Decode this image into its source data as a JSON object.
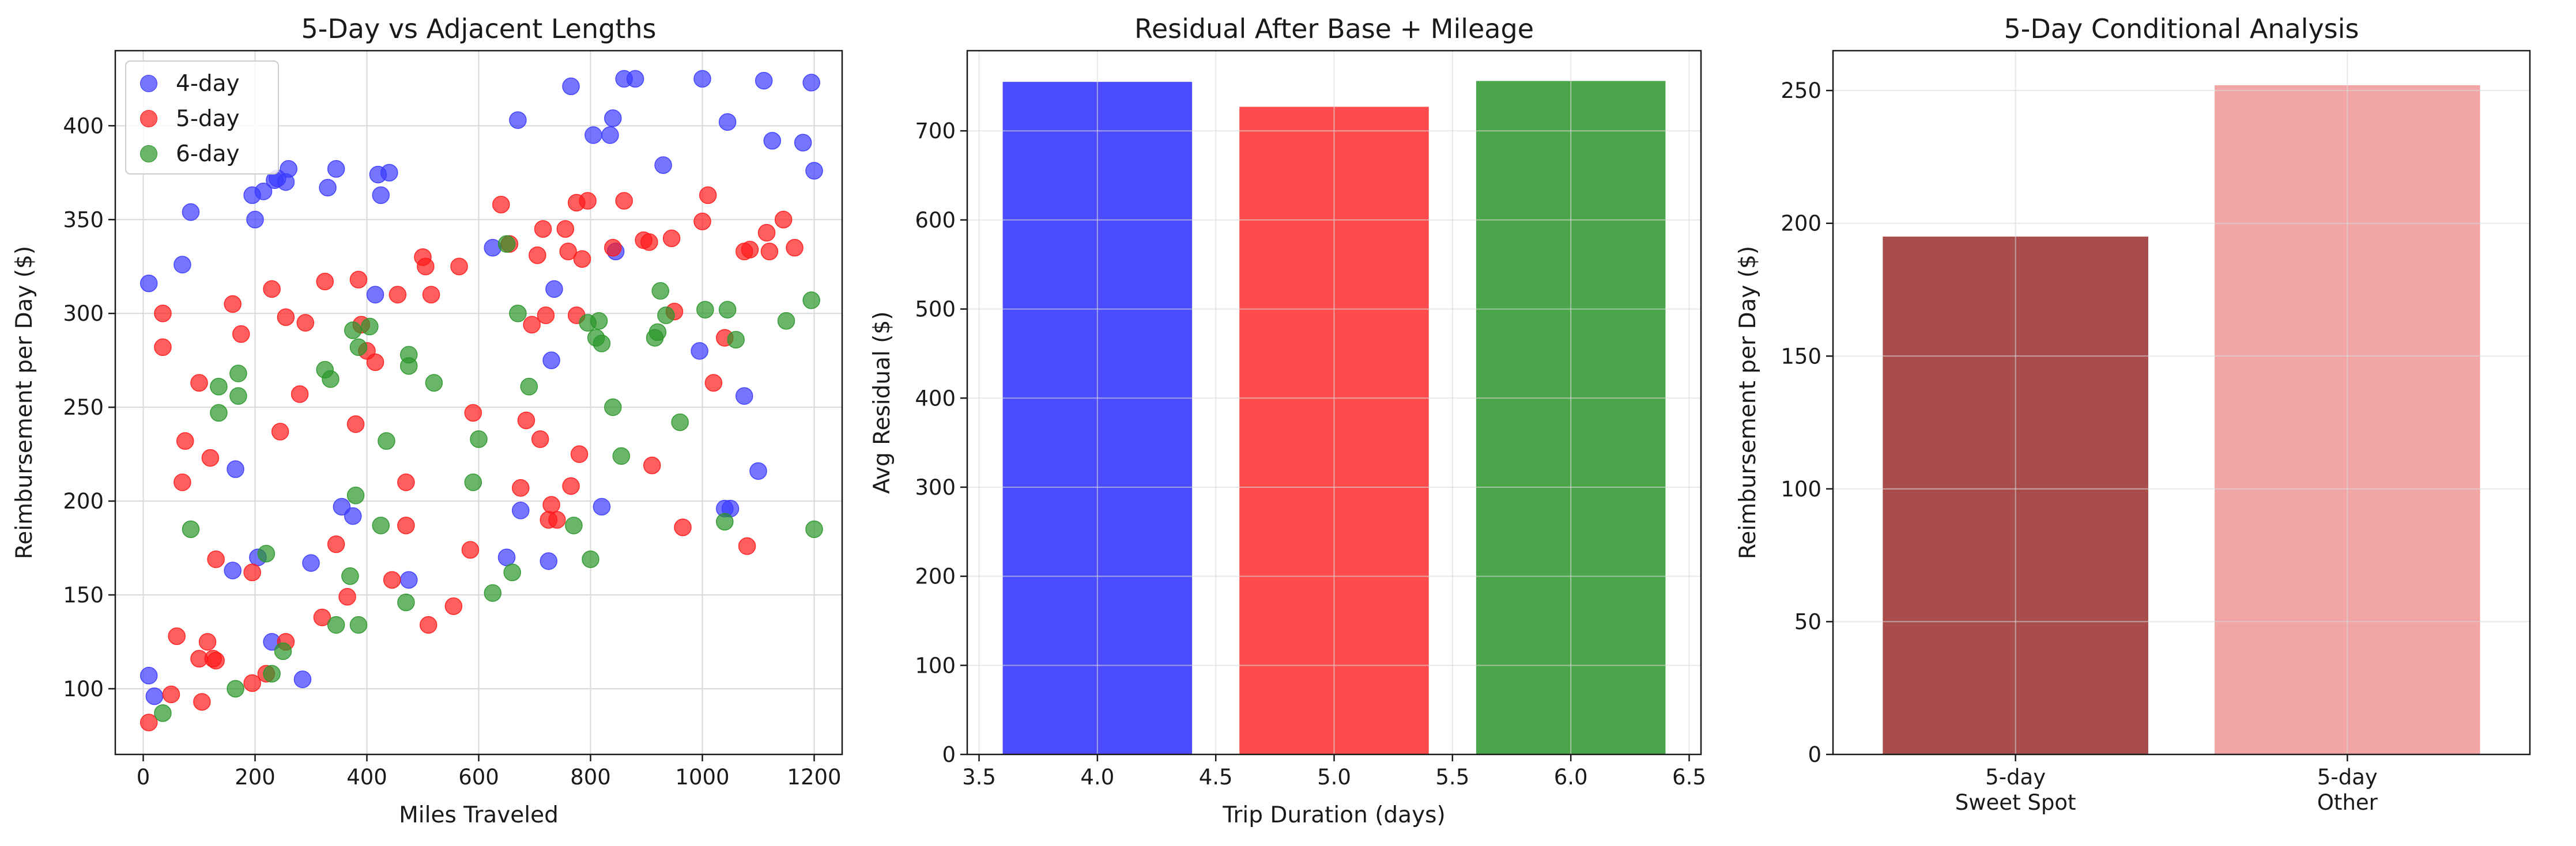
{
  "chart_data": [
    {
      "type": "scatter",
      "title": "5-Day vs Adjacent Lengths",
      "xlabel": "Miles Traveled",
      "ylabel": "Reimbursement per Day ($)",
      "xlim": [
        -50,
        1250
      ],
      "ylim": [
        65,
        440
      ],
      "xticks": [
        0,
        200,
        400,
        600,
        800,
        1000,
        1200
      ],
      "yticks": [
        100,
        150,
        200,
        250,
        300,
        350,
        400
      ],
      "grid": true,
      "legend_position": "top-left",
      "series": [
        {
          "name": "4-day",
          "color": "#3a3aff",
          "points": [
            [
              10,
              316
            ],
            [
              10,
              107
            ],
            [
              20,
              96
            ],
            [
              70,
              326
            ],
            [
              85,
              354
            ],
            [
              160,
              163
            ],
            [
              165,
              217
            ],
            [
              195,
              363
            ],
            [
              200,
              350
            ],
            [
              205,
              170
            ],
            [
              215,
              365
            ],
            [
              230,
              125
            ],
            [
              235,
              371
            ],
            [
              240,
              372
            ],
            [
              255,
              370
            ],
            [
              260,
              377
            ],
            [
              285,
              105
            ],
            [
              300,
              167
            ],
            [
              330,
              367
            ],
            [
              345,
              377
            ],
            [
              355,
              197
            ],
            [
              375,
              192
            ],
            [
              415,
              310
            ],
            [
              420,
              374
            ],
            [
              425,
              363
            ],
            [
              440,
              375
            ],
            [
              475,
              158
            ],
            [
              625,
              335
            ],
            [
              650,
              170
            ],
            [
              670,
              403
            ],
            [
              675,
              195
            ],
            [
              725,
              168
            ],
            [
              730,
              275
            ],
            [
              735,
              313
            ],
            [
              765,
              421
            ],
            [
              805,
              395
            ],
            [
              820,
              197
            ],
            [
              835,
              395
            ],
            [
              840,
              404
            ],
            [
              845,
              333
            ],
            [
              860,
              425
            ],
            [
              880,
              425
            ],
            [
              930,
              379
            ],
            [
              995,
              280
            ],
            [
              1000,
              425
            ],
            [
              1040,
              196
            ],
            [
              1045,
              402
            ],
            [
              1050,
              196
            ],
            [
              1075,
              256
            ],
            [
              1100,
              216
            ],
            [
              1110,
              424
            ],
            [
              1125,
              392
            ],
            [
              1180,
              391
            ],
            [
              1195,
              423
            ],
            [
              1200,
              376
            ]
          ]
        },
        {
          "name": "5-day",
          "color": "#ff1a1a",
          "points": [
            [
              10,
              82
            ],
            [
              35,
              300
            ],
            [
              35,
              282
            ],
            [
              50,
              97
            ],
            [
              60,
              128
            ],
            [
              70,
              210
            ],
            [
              75,
              232
            ],
            [
              100,
              263
            ],
            [
              100,
              116
            ],
            [
              105,
              93
            ],
            [
              115,
              125
            ],
            [
              120,
              223
            ],
            [
              125,
              116
            ],
            [
              130,
              169
            ],
            [
              130,
              115
            ],
            [
              160,
              305
            ],
            [
              175,
              289
            ],
            [
              195,
              103
            ],
            [
              195,
              162
            ],
            [
              220,
              108
            ],
            [
              230,
              313
            ],
            [
              245,
              237
            ],
            [
              255,
              298
            ],
            [
              255,
              125
            ],
            [
              280,
              257
            ],
            [
              290,
              295
            ],
            [
              320,
              138
            ],
            [
              325,
              317
            ],
            [
              345,
              177
            ],
            [
              365,
              149
            ],
            [
              380,
              241
            ],
            [
              385,
              318
            ],
            [
              390,
              294
            ],
            [
              400,
              280
            ],
            [
              415,
              274
            ],
            [
              445,
              158
            ],
            [
              455,
              310
            ],
            [
              470,
              210
            ],
            [
              470,
              187
            ],
            [
              500,
              330
            ],
            [
              505,
              325
            ],
            [
              510,
              134
            ],
            [
              515,
              310
            ],
            [
              555,
              144
            ],
            [
              565,
              325
            ],
            [
              585,
              174
            ],
            [
              590,
              247
            ],
            [
              640,
              358
            ],
            [
              655,
              337
            ],
            [
              675,
              207
            ],
            [
              685,
              243
            ],
            [
              695,
              294
            ],
            [
              705,
              331
            ],
            [
              710,
              233
            ],
            [
              715,
              345
            ],
            [
              720,
              299
            ],
            [
              725,
              190
            ],
            [
              730,
              198
            ],
            [
              740,
              190
            ],
            [
              755,
              345
            ],
            [
              760,
              333
            ],
            [
              765,
              208
            ],
            [
              775,
              299
            ],
            [
              775,
              359
            ],
            [
              780,
              225
            ],
            [
              785,
              329
            ],
            [
              795,
              360
            ],
            [
              840,
              335
            ],
            [
              860,
              360
            ],
            [
              895,
              339
            ],
            [
              905,
              338
            ],
            [
              910,
              219
            ],
            [
              945,
              340
            ],
            [
              950,
              301
            ],
            [
              965,
              186
            ],
            [
              1000,
              349
            ],
            [
              1010,
              363
            ],
            [
              1020,
              263
            ],
            [
              1040,
              287
            ],
            [
              1075,
              333
            ],
            [
              1080,
              176
            ],
            [
              1085,
              334
            ],
            [
              1115,
              343
            ],
            [
              1120,
              333
            ],
            [
              1145,
              350
            ],
            [
              1165,
              335
            ]
          ]
        },
        {
          "name": "6-day",
          "color": "#2a962a",
          "points": [
            [
              35,
              87
            ],
            [
              85,
              185
            ],
            [
              135,
              261
            ],
            [
              135,
              247
            ],
            [
              165,
              100
            ],
            [
              170,
              268
            ],
            [
              170,
              256
            ],
            [
              220,
              172
            ],
            [
              230,
              108
            ],
            [
              250,
              120
            ],
            [
              325,
              270
            ],
            [
              335,
              265
            ],
            [
              345,
              134
            ],
            [
              370,
              160
            ],
            [
              375,
              291
            ],
            [
              380,
              203
            ],
            [
              385,
              134
            ],
            [
              385,
              282
            ],
            [
              405,
              293
            ],
            [
              425,
              187
            ],
            [
              435,
              232
            ],
            [
              470,
              146
            ],
            [
              475,
              278
            ],
            [
              475,
              272
            ],
            [
              520,
              263
            ],
            [
              590,
              210
            ],
            [
              600,
              233
            ],
            [
              625,
              151
            ],
            [
              650,
              337
            ],
            [
              660,
              162
            ],
            [
              670,
              300
            ],
            [
              690,
              261
            ],
            [
              770,
              187
            ],
            [
              795,
              295
            ],
            [
              800,
              169
            ],
            [
              810,
              287
            ],
            [
              815,
              296
            ],
            [
              820,
              284
            ],
            [
              840,
              250
            ],
            [
              855,
              224
            ],
            [
              915,
              287
            ],
            [
              920,
              290
            ],
            [
              925,
              312
            ],
            [
              935,
              299
            ],
            [
              960,
              242
            ],
            [
              1005,
              302
            ],
            [
              1040,
              189
            ],
            [
              1045,
              302
            ],
            [
              1060,
              286
            ],
            [
              1150,
              296
            ],
            [
              1195,
              307
            ],
            [
              1200,
              185
            ]
          ]
        }
      ]
    },
    {
      "type": "bar",
      "title": "Residual After Base + Mileage",
      "xlabel": "Trip Duration (days)",
      "ylabel": "Avg Residual ($)",
      "xlim": [
        3.45,
        6.55
      ],
      "ylim": [
        0,
        790
      ],
      "xticks": [
        3.5,
        4.0,
        4.5,
        5.0,
        5.5,
        6.0,
        6.5
      ],
      "yticks": [
        0,
        100,
        200,
        300,
        400,
        500,
        600,
        700
      ],
      "grid": true,
      "bar_width": 0.8,
      "bars": [
        {
          "x": 4,
          "value": 755,
          "color": "#4b4bff"
        },
        {
          "x": 5,
          "value": 727,
          "color": "#ff4b4b"
        },
        {
          "x": 6,
          "value": 756,
          "color": "#4ba64b"
        }
      ]
    },
    {
      "type": "bar",
      "title": "5-Day Conditional Analysis",
      "xlabel": "",
      "ylabel": "Reimbursement per Day ($)",
      "ylim": [
        0,
        265
      ],
      "yticks": [
        0,
        50,
        100,
        150,
        200,
        250
      ],
      "grid": true,
      "categories": [
        [
          "5-day",
          "Sweet Spot"
        ],
        [
          "5-day",
          "Other"
        ]
      ],
      "values": [
        195,
        252
      ],
      "colors": [
        "#a84c4c",
        "#f2a5a5"
      ]
    }
  ]
}
